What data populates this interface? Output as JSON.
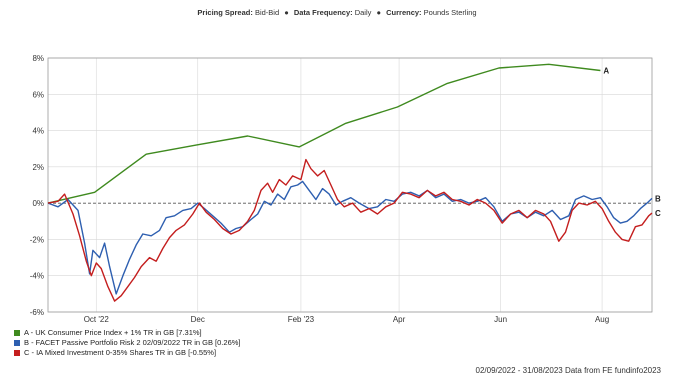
{
  "header": {
    "pricing_label": "Pricing Spread:",
    "pricing_value": "Bid-Bid",
    "frequency_label": "Data Frequency:",
    "frequency_value": "Daily",
    "currency_label": "Currency:",
    "currency_value": "Pounds Sterling",
    "separator": "●"
  },
  "chart_data": {
    "type": "line",
    "x_range": [
      "2022-09-02",
      "2023-08-31"
    ],
    "ylim": [
      -6,
      8
    ],
    "yticks": [
      8,
      6,
      4,
      2,
      0,
      -2,
      -4,
      -6
    ],
    "ytick_labels": [
      "8%",
      "6%",
      "4%",
      "2%",
      "0%",
      "-2%",
      "-4%",
      "-6%"
    ],
    "xticks": [
      "2022-10-01",
      "2022-12-01",
      "2023-02-01",
      "2023-04-01",
      "2023-06-01",
      "2023-08-01"
    ],
    "xtick_labels": [
      "Oct '22",
      "Dec",
      "Feb '23",
      "Apr",
      "Jun",
      "Aug"
    ],
    "grid": true,
    "zero_line": "dashed",
    "legend_position": "bottom-left",
    "series": [
      {
        "id": "A",
        "name": "A - UK Consumer Price Index + 1% TR in GB [7.31%]",
        "end_label": "A",
        "color": "#3f8a1f",
        "points": [
          [
            "2022-09-02",
            0.0
          ],
          [
            "2022-09-30",
            0.6
          ],
          [
            "2022-10-31",
            2.7
          ],
          [
            "2022-11-30",
            3.2
          ],
          [
            "2022-12-31",
            3.7
          ],
          [
            "2023-01-31",
            3.1
          ],
          [
            "2023-02-28",
            4.4
          ],
          [
            "2023-03-31",
            5.3
          ],
          [
            "2023-04-30",
            6.6
          ],
          [
            "2023-05-31",
            7.45
          ],
          [
            "2023-06-30",
            7.65
          ],
          [
            "2023-07-31",
            7.31
          ]
        ]
      },
      {
        "id": "B",
        "name": "B - FACET Passive Portfolio Risk 2 02/09/2022 TR in GB [0.26%]",
        "end_label": "B",
        "color": "#2e5fb0",
        "points": [
          [
            "2022-09-02",
            0.0
          ],
          [
            "2022-09-08",
            -0.2
          ],
          [
            "2022-09-14",
            0.2
          ],
          [
            "2022-09-20",
            -0.4
          ],
          [
            "2022-09-24",
            -2.2
          ],
          [
            "2022-09-27",
            -3.9
          ],
          [
            "2022-09-29",
            -2.6
          ],
          [
            "2022-10-03",
            -3.0
          ],
          [
            "2022-10-06",
            -2.2
          ],
          [
            "2022-10-09",
            -3.5
          ],
          [
            "2022-10-13",
            -5.0
          ],
          [
            "2022-10-17",
            -4.0
          ],
          [
            "2022-10-21",
            -3.1
          ],
          [
            "2022-10-25",
            -2.3
          ],
          [
            "2022-10-29",
            -1.7
          ],
          [
            "2022-11-03",
            -1.8
          ],
          [
            "2022-11-08",
            -1.5
          ],
          [
            "2022-11-12",
            -0.8
          ],
          [
            "2022-11-17",
            -0.7
          ],
          [
            "2022-11-22",
            -0.4
          ],
          [
            "2022-11-27",
            -0.3
          ],
          [
            "2022-12-01",
            0.0
          ],
          [
            "2022-12-05",
            -0.3
          ],
          [
            "2022-12-10",
            -0.7
          ],
          [
            "2022-12-15",
            -1.1
          ],
          [
            "2022-12-20",
            -1.6
          ],
          [
            "2022-12-24",
            -1.4
          ],
          [
            "2022-12-28",
            -1.3
          ],
          [
            "2023-01-02",
            -0.9
          ],
          [
            "2023-01-06",
            -0.6
          ],
          [
            "2023-01-10",
            0.1
          ],
          [
            "2023-01-14",
            -0.1
          ],
          [
            "2023-01-18",
            0.5
          ],
          [
            "2023-01-22",
            0.2
          ],
          [
            "2023-01-26",
            0.9
          ],
          [
            "2023-01-30",
            1.0
          ],
          [
            "2023-02-02",
            1.2
          ],
          [
            "2023-02-06",
            0.7
          ],
          [
            "2023-02-10",
            0.2
          ],
          [
            "2023-02-14",
            0.8
          ],
          [
            "2023-02-18",
            0.5
          ],
          [
            "2023-02-22",
            -0.1
          ],
          [
            "2023-02-26",
            0.1
          ],
          [
            "2023-03-03",
            0.3
          ],
          [
            "2023-03-08",
            0.0
          ],
          [
            "2023-03-14",
            -0.3
          ],
          [
            "2023-03-19",
            -0.2
          ],
          [
            "2023-03-24",
            0.2
          ],
          [
            "2023-03-29",
            0.1
          ],
          [
            "2023-04-03",
            0.5
          ],
          [
            "2023-04-08",
            0.6
          ],
          [
            "2023-04-13",
            0.4
          ],
          [
            "2023-04-18",
            0.7
          ],
          [
            "2023-04-23",
            0.3
          ],
          [
            "2023-04-28",
            0.5
          ],
          [
            "2023-05-03",
            0.1
          ],
          [
            "2023-05-08",
            0.2
          ],
          [
            "2023-05-13",
            0.0
          ],
          [
            "2023-05-18",
            0.1
          ],
          [
            "2023-05-23",
            0.3
          ],
          [
            "2023-05-28",
            -0.2
          ],
          [
            "2023-06-02",
            -1.0
          ],
          [
            "2023-06-07",
            -0.6
          ],
          [
            "2023-06-12",
            -0.5
          ],
          [
            "2023-06-17",
            -0.8
          ],
          [
            "2023-06-22",
            -0.5
          ],
          [
            "2023-06-27",
            -0.7
          ],
          [
            "2023-07-02",
            -0.4
          ],
          [
            "2023-07-07",
            -0.9
          ],
          [
            "2023-07-12",
            -0.7
          ],
          [
            "2023-07-16",
            0.2
          ],
          [
            "2023-07-21",
            0.4
          ],
          [
            "2023-07-26",
            0.2
          ],
          [
            "2023-07-31",
            0.3
          ],
          [
            "2023-08-04",
            -0.2
          ],
          [
            "2023-08-08",
            -0.8
          ],
          [
            "2023-08-12",
            -1.1
          ],
          [
            "2023-08-16",
            -1.0
          ],
          [
            "2023-08-20",
            -0.7
          ],
          [
            "2023-08-24",
            -0.3
          ],
          [
            "2023-08-28",
            0.0
          ],
          [
            "2023-08-31",
            0.26
          ]
        ]
      },
      {
        "id": "C",
        "name": "C - IA Mixed Investment 0-35% Shares TR in GB [-0.55%]",
        "end_label": "C",
        "color": "#c41e1e",
        "points": [
          [
            "2022-09-02",
            0.0
          ],
          [
            "2022-09-08",
            0.1
          ],
          [
            "2022-09-12",
            0.5
          ],
          [
            "2022-09-17",
            -0.6
          ],
          [
            "2022-09-21",
            -1.8
          ],
          [
            "2022-09-25",
            -3.2
          ],
          [
            "2022-09-28",
            -4.0
          ],
          [
            "2022-10-01",
            -3.3
          ],
          [
            "2022-10-04",
            -3.6
          ],
          [
            "2022-10-08",
            -4.6
          ],
          [
            "2022-10-12",
            -5.4
          ],
          [
            "2022-10-16",
            -5.1
          ],
          [
            "2022-10-20",
            -4.6
          ],
          [
            "2022-10-24",
            -4.1
          ],
          [
            "2022-10-28",
            -3.5
          ],
          [
            "2022-11-02",
            -3.0
          ],
          [
            "2022-11-06",
            -3.2
          ],
          [
            "2022-11-10",
            -2.5
          ],
          [
            "2022-11-14",
            -1.9
          ],
          [
            "2022-11-18",
            -1.5
          ],
          [
            "2022-11-23",
            -1.2
          ],
          [
            "2022-11-28",
            -0.6
          ],
          [
            "2022-12-02",
            0.0
          ],
          [
            "2022-12-06",
            -0.5
          ],
          [
            "2022-12-11",
            -0.9
          ],
          [
            "2022-12-16",
            -1.4
          ],
          [
            "2022-12-21",
            -1.7
          ],
          [
            "2022-12-26",
            -1.5
          ],
          [
            "2022-12-31",
            -1.0
          ],
          [
            "2023-01-04",
            -0.4
          ],
          [
            "2023-01-08",
            0.7
          ],
          [
            "2023-01-12",
            1.1
          ],
          [
            "2023-01-15",
            0.6
          ],
          [
            "2023-01-19",
            1.3
          ],
          [
            "2023-01-23",
            1.0
          ],
          [
            "2023-01-27",
            1.5
          ],
          [
            "2023-02-01",
            1.3
          ],
          [
            "2023-02-04",
            2.4
          ],
          [
            "2023-02-07",
            1.9
          ],
          [
            "2023-02-11",
            1.5
          ],
          [
            "2023-02-15",
            1.8
          ],
          [
            "2023-02-19",
            1.0
          ],
          [
            "2023-02-23",
            0.2
          ],
          [
            "2023-02-27",
            -0.2
          ],
          [
            "2023-03-04",
            0.0
          ],
          [
            "2023-03-09",
            -0.5
          ],
          [
            "2023-03-14",
            -0.3
          ],
          [
            "2023-03-19",
            -0.6
          ],
          [
            "2023-03-24",
            -0.2
          ],
          [
            "2023-03-29",
            0.0
          ],
          [
            "2023-04-03",
            0.6
          ],
          [
            "2023-04-08",
            0.5
          ],
          [
            "2023-04-13",
            0.3
          ],
          [
            "2023-04-18",
            0.7
          ],
          [
            "2023-04-23",
            0.4
          ],
          [
            "2023-04-28",
            0.6
          ],
          [
            "2023-05-03",
            0.2
          ],
          [
            "2023-05-08",
            0.1
          ],
          [
            "2023-05-13",
            -0.1
          ],
          [
            "2023-05-18",
            0.2
          ],
          [
            "2023-05-23",
            0.0
          ],
          [
            "2023-05-28",
            -0.4
          ],
          [
            "2023-06-02",
            -1.1
          ],
          [
            "2023-06-07",
            -0.6
          ],
          [
            "2023-06-12",
            -0.4
          ],
          [
            "2023-06-17",
            -0.8
          ],
          [
            "2023-06-22",
            -0.4
          ],
          [
            "2023-06-27",
            -0.6
          ],
          [
            "2023-07-01",
            -1.0
          ],
          [
            "2023-07-06",
            -2.1
          ],
          [
            "2023-07-10",
            -1.6
          ],
          [
            "2023-07-14",
            -0.4
          ],
          [
            "2023-07-18",
            0.0
          ],
          [
            "2023-07-23",
            -0.1
          ],
          [
            "2023-07-28",
            0.1
          ],
          [
            "2023-08-01",
            -0.3
          ],
          [
            "2023-08-05",
            -1.0
          ],
          [
            "2023-08-09",
            -1.6
          ],
          [
            "2023-08-13",
            -2.0
          ],
          [
            "2023-08-17",
            -2.1
          ],
          [
            "2023-08-21",
            -1.3
          ],
          [
            "2023-08-25",
            -1.2
          ],
          [
            "2023-08-29",
            -0.7
          ],
          [
            "2023-08-31",
            -0.55
          ]
        ]
      }
    ]
  },
  "legend": [
    {
      "text": "A - UK Consumer Price Index + 1% TR in GB [7.31%]",
      "color": "#3f8a1f"
    },
    {
      "text": "B - FACET Passive Portfolio Risk 2 02/09/2022 TR in GB [0.26%]",
      "color": "#2e5fb0"
    },
    {
      "text": "C - IA Mixed Investment 0-35% Shares TR in GB [-0.55%]",
      "color": "#c41e1e"
    }
  ],
  "footer": "02/09/2022 - 31/08/2023 Data from FE fundinfo2023"
}
